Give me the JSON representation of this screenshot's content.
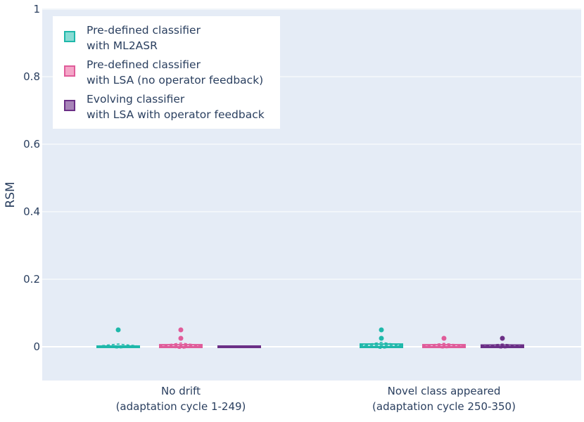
{
  "chart_data": {
    "type": "box",
    "ylabel": "RSM",
    "ylim": [
      -0.1,
      1.0
    ],
    "yticks": [
      {
        "v": 0,
        "label": "0"
      },
      {
        "v": 0.2,
        "label": "0.2"
      },
      {
        "v": 0.4,
        "label": "0.4"
      },
      {
        "v": 0.6,
        "label": "0.6"
      },
      {
        "v": 0.8,
        "label": "0.8"
      },
      {
        "v": 1.0,
        "label": "1"
      }
    ],
    "grid": true,
    "legend_position": "top-left",
    "categories": [
      {
        "line1": "No drift",
        "line2": "(adaptation cycle 1-249)"
      },
      {
        "line1": "Novel class appeared",
        "line2": "(adaptation cycle 250-350)"
      }
    ],
    "series": [
      {
        "name_line1": "Pre-defined classifier",
        "name_line2": "with ML2ASR",
        "color": "#1fb8aa",
        "fill": "#88dcd4",
        "boxes": [
          {
            "q1": 0,
            "median": 0,
            "q3": 0,
            "mean": 0.002,
            "sd": 0.006,
            "outliers": [
              0.05
            ]
          },
          {
            "q1": 0,
            "median": 0,
            "q3": 0.006,
            "mean": 0.004,
            "sd": 0.009,
            "outliers": [
              0.05,
              0.025
            ]
          }
        ]
      },
      {
        "name_line1": "Pre-defined classifier",
        "name_line2": "with LSA (no operator feedback)",
        "color": "#e05c9a",
        "fill": "#f4a6c8",
        "boxes": [
          {
            "q1": 0,
            "median": 0,
            "q3": 0.004,
            "mean": 0.003,
            "sd": 0.008,
            "outliers": [
              0.05,
              0.025
            ]
          },
          {
            "q1": 0,
            "median": 0,
            "q3": 0.004,
            "mean": 0.003,
            "sd": 0.007,
            "outliers": [
              0.025
            ]
          }
        ]
      },
      {
        "name_line1": "Evolving classifier",
        "name_line2": "with LSA with operator feedback",
        "color": "#6b2f86",
        "fill": "#a884b8",
        "boxes": [
          {
            "q1": 0,
            "median": 0,
            "q3": 0,
            "mean": 0,
            "sd": 0,
            "outliers": []
          },
          {
            "q1": 0,
            "median": 0,
            "q3": 0.003,
            "mean": 0.002,
            "sd": 0.006,
            "outliers": [
              0.025
            ]
          }
        ]
      }
    ]
  }
}
